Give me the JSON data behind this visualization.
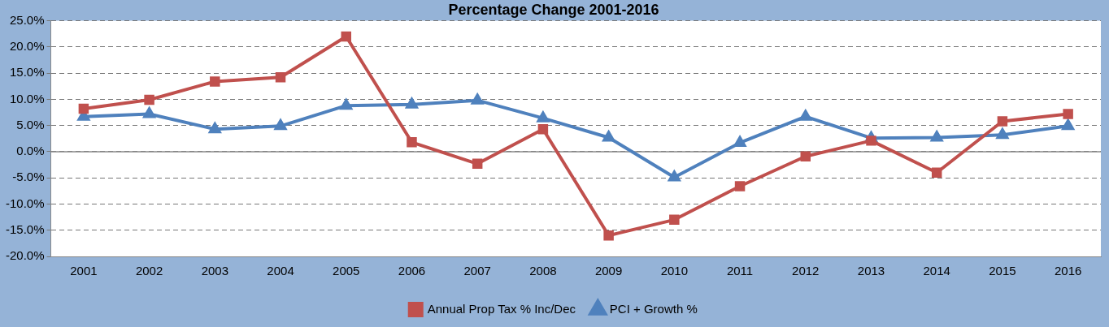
{
  "chart_data": {
    "type": "line",
    "title": "Percentage Change 2001-2016",
    "categories": [
      "2001",
      "2002",
      "2003",
      "2004",
      "2005",
      "2006",
      "2007",
      "2008",
      "2009",
      "2010",
      "2011",
      "2012",
      "2013",
      "2014",
      "2015",
      "2016"
    ],
    "series": [
      {
        "name": "PCI + Growth %",
        "color": "#4f81bd",
        "marker": "triangle",
        "values": [
          6.7,
          7.2,
          4.3,
          4.9,
          8.8,
          9.0,
          9.8,
          6.4,
          2.7,
          -4.9,
          1.7,
          6.7,
          2.6,
          2.7,
          3.2,
          4.9
        ]
      },
      {
        "name": "Annual Prop Tax % Inc/Dec",
        "color": "#c0504d",
        "marker": "square",
        "values": [
          8.2,
          9.9,
          13.4,
          14.2,
          22.0,
          1.8,
          -2.3,
          4.3,
          -16.0,
          -13.0,
          -6.6,
          -0.9,
          2.1,
          -4.0,
          5.8,
          7.2
        ]
      }
    ],
    "ylim": [
      -20,
      25
    ],
    "yticks": [
      {
        "value": -20,
        "label": "-20.0%"
      },
      {
        "value": -15,
        "label": "-15.0%"
      },
      {
        "value": -10,
        "label": "-10.0%"
      },
      {
        "value": -5,
        "label": "-5.0%"
      },
      {
        "value": 0,
        "label": "0.0%"
      },
      {
        "value": 5,
        "label": "5.0%"
      },
      {
        "value": 10,
        "label": "10.0%"
      },
      {
        "value": 15,
        "label": "15.0%"
      },
      {
        "value": 20,
        "label": "20.0%"
      },
      {
        "value": 25,
        "label": "25.0%"
      }
    ],
    "ref_lines": [
      {
        "axis": "y",
        "value": 0,
        "color": "#888888",
        "line_style": "solid"
      }
    ],
    "grid": "y",
    "legend": "bottom",
    "line_style": "solid"
  }
}
